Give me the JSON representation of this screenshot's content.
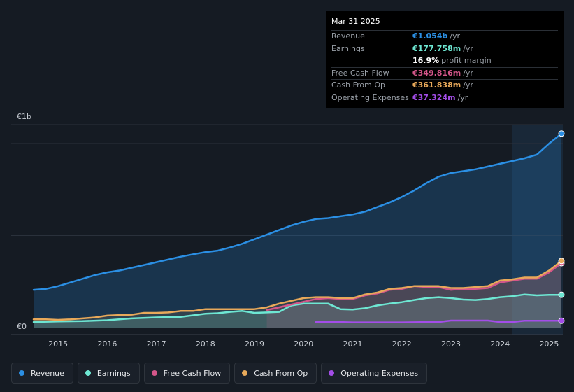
{
  "tooltip": {
    "date": "Mar 31 2025",
    "rows": [
      {
        "label": "Revenue",
        "value": "€1.054b",
        "unit": "/yr",
        "color": "#2b8fe4"
      },
      {
        "label": "Earnings",
        "value": "€177.758m",
        "unit": "/yr",
        "color": "#6ee7d3"
      },
      {
        "label": "",
        "value": "16.9%",
        "unit": "profit margin",
        "color": "#ffffff"
      },
      {
        "label": "Free Cash Flow",
        "value": "€349.816m",
        "unit": "/yr",
        "color": "#d4568a"
      },
      {
        "label": "Cash From Op",
        "value": "€361.838m",
        "unit": "/yr",
        "color": "#e8a95a"
      },
      {
        "label": "Operating Expenses",
        "value": "€37.324m",
        "unit": "/yr",
        "color": "#a34de8"
      }
    ]
  },
  "legend": [
    {
      "label": "Revenue",
      "color": "#2b8fe4"
    },
    {
      "label": "Earnings",
      "color": "#6ee7d3"
    },
    {
      "label": "Free Cash Flow",
      "color": "#d4568a"
    },
    {
      "label": "Cash From Op",
      "color": "#e8a95a"
    },
    {
      "label": "Operating Expenses",
      "color": "#a34de8"
    }
  ],
  "chart_data": {
    "type": "area",
    "y_top_label": "€1b",
    "y_bottom_label": "€0",
    "ylim": [
      0,
      1.1
    ],
    "xlim": [
      2014.5,
      2025.25
    ],
    "x_ticks": [
      "2015",
      "2016",
      "2017",
      "2018",
      "2019",
      "2020",
      "2021",
      "2022",
      "2023",
      "2024",
      "2025"
    ],
    "x_tick_values": [
      2015,
      2016,
      2017,
      2018,
      2019,
      2020,
      2021,
      2022,
      2023,
      2024,
      2025
    ],
    "highlight_from": 2024.25,
    "series": [
      {
        "name": "Revenue",
        "color": "#2b8fe4",
        "x": [
          2014.5,
          2014.75,
          2015,
          2015.25,
          2015.5,
          2015.75,
          2016,
          2016.25,
          2016.5,
          2016.75,
          2017,
          2017.25,
          2017.5,
          2017.75,
          2018,
          2018.25,
          2018.5,
          2018.75,
          2019,
          2019.25,
          2019.5,
          2019.75,
          2020,
          2020.25,
          2020.5,
          2020.75,
          2021,
          2021.25,
          2021.5,
          2021.75,
          2022,
          2022.25,
          2022.5,
          2022.75,
          2023,
          2023.25,
          2023.5,
          2023.75,
          2024,
          2024.25,
          2024.5,
          2024.75,
          2025,
          2025.25
        ],
        "values": [
          0.205,
          0.21,
          0.225,
          0.245,
          0.265,
          0.285,
          0.3,
          0.31,
          0.325,
          0.34,
          0.355,
          0.37,
          0.385,
          0.398,
          0.41,
          0.418,
          0.435,
          0.455,
          0.48,
          0.505,
          0.53,
          0.555,
          0.575,
          0.59,
          0.595,
          0.605,
          0.615,
          0.63,
          0.655,
          0.68,
          0.71,
          0.745,
          0.785,
          0.82,
          0.84,
          0.85,
          0.86,
          0.875,
          0.89,
          0.905,
          0.92,
          0.94,
          1.0,
          1.054
        ]
      },
      {
        "name": "Earnings",
        "color": "#6ee7d3",
        "x": [
          2014.5,
          2015,
          2015.5,
          2016,
          2016.5,
          2017,
          2017.5,
          2018,
          2018.25,
          2018.5,
          2018.75,
          2019,
          2019.25,
          2019.5,
          2019.75,
          2020,
          2020.25,
          2020.5,
          2020.75,
          2021,
          2021.25,
          2021.5,
          2021.75,
          2022,
          2022.25,
          2022.5,
          2022.75,
          2023,
          2023.25,
          2023.5,
          2023.75,
          2024,
          2024.25,
          2024.5,
          2024.75,
          2025,
          2025.25
        ],
        "values": [
          0.03,
          0.033,
          0.035,
          0.04,
          0.05,
          0.055,
          0.058,
          0.075,
          0.078,
          0.085,
          0.09,
          0.08,
          0.082,
          0.085,
          0.12,
          0.13,
          0.13,
          0.13,
          0.1,
          0.098,
          0.105,
          0.12,
          0.13,
          0.138,
          0.15,
          0.16,
          0.165,
          0.16,
          0.152,
          0.15,
          0.155,
          0.165,
          0.17,
          0.18,
          0.175,
          0.178,
          0.178
        ]
      },
      {
        "name": "Free Cash Flow",
        "color": "#d4568a",
        "x": [
          2019.25,
          2019.5,
          2019.75,
          2020,
          2020.25,
          2020.5,
          2020.75,
          2021,
          2021.25,
          2021.5,
          2021.75,
          2022,
          2022.25,
          2022.5,
          2022.75,
          2023,
          2023.25,
          2023.5,
          2023.75,
          2024,
          2024.25,
          2024.5,
          2024.75,
          2025,
          2025.25
        ],
        "values": [
          0.095,
          0.11,
          0.125,
          0.14,
          0.155,
          0.16,
          0.155,
          0.155,
          0.175,
          0.185,
          0.205,
          0.21,
          0.225,
          0.22,
          0.22,
          0.205,
          0.21,
          0.21,
          0.215,
          0.245,
          0.255,
          0.265,
          0.265,
          0.3,
          0.35
        ]
      },
      {
        "name": "Cash From Op",
        "color": "#e8a95a",
        "x": [
          2014.5,
          2014.75,
          2015,
          2015.25,
          2015.5,
          2015.75,
          2016,
          2016.25,
          2016.5,
          2016.75,
          2017,
          2017.25,
          2017.5,
          2017.75,
          2018,
          2018.25,
          2018.5,
          2018.75,
          2019,
          2019.25,
          2019.5,
          2019.75,
          2020,
          2020.25,
          2020.5,
          2020.75,
          2021,
          2021.25,
          2021.5,
          2021.75,
          2022,
          2022.25,
          2022.5,
          2022.75,
          2023,
          2023.25,
          2023.5,
          2023.75,
          2024,
          2024.25,
          2024.5,
          2024.75,
          2025,
          2025.25
        ],
        "values": [
          0.045,
          0.045,
          0.042,
          0.045,
          0.05,
          0.055,
          0.065,
          0.068,
          0.07,
          0.08,
          0.08,
          0.082,
          0.09,
          0.09,
          0.1,
          0.1,
          0.1,
          0.1,
          0.1,
          0.11,
          0.13,
          0.145,
          0.16,
          0.165,
          0.165,
          0.16,
          0.16,
          0.18,
          0.19,
          0.21,
          0.215,
          0.225,
          0.225,
          0.225,
          0.215,
          0.215,
          0.22,
          0.225,
          0.255,
          0.262,
          0.272,
          0.272,
          0.31,
          0.362
        ]
      },
      {
        "name": "Operating Expenses",
        "color": "#a34de8",
        "x": [
          2020.25,
          2020.5,
          2020.75,
          2021,
          2021.5,
          2022,
          2022.5,
          2022.75,
          2023,
          2023.5,
          2023.75,
          2024,
          2024.25,
          2024.5,
          2025,
          2025.25
        ],
        "values": [
          0.03,
          0.03,
          0.03,
          0.028,
          0.028,
          0.028,
          0.03,
          0.03,
          0.038,
          0.038,
          0.038,
          0.03,
          0.03,
          0.037,
          0.037,
          0.037
        ]
      }
    ]
  }
}
